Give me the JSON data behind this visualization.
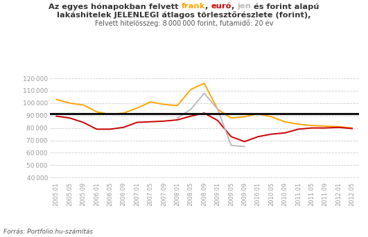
{
  "source": "Forrás: Portfolio.hu-számítás",
  "hline_value": 91500,
  "ylim": [
    37000,
    122000
  ],
  "yticks": [
    40000,
    50000,
    60000,
    70000,
    80000,
    90000,
    100000,
    110000,
    120000
  ],
  "frank_color": "#FFA500",
  "euro_color": "#CC0000",
  "jen_color": "#BBBBBB",
  "hline_color": "#111111",
  "x_dates": [
    "2005.01",
    "2005.05",
    "2005.09",
    "2006.01",
    "2006.05",
    "2006.09",
    "2007.01",
    "2007.05",
    "2007.09",
    "2008.01",
    "2008.05",
    "2008.09",
    "2009.01",
    "2009.05",
    "2009.09",
    "2010.01",
    "2010.05",
    "2010.09",
    "2011.01",
    "2011.05",
    "2011.09",
    "2012.01",
    "2012.05"
  ],
  "frank_values": [
    103000,
    100000,
    98500,
    93000,
    91000,
    92000,
    96000,
    101000,
    99000,
    98000,
    111000,
    116000,
    95000,
    88000,
    89000,
    91500,
    89000,
    85000,
    83000,
    82000,
    81500,
    81000,
    80000
  ],
  "euro_values": [
    89500,
    88000,
    84500,
    79000,
    79000,
    80500,
    84500,
    85000,
    85500,
    86500,
    89500,
    92000,
    86000,
    73000,
    69000,
    73000,
    75000,
    76000,
    79000,
    80000,
    80000,
    80500,
    79500
  ],
  "jen_values": [
    null,
    null,
    null,
    null,
    null,
    null,
    null,
    null,
    null,
    88000,
    95000,
    108000,
    95000,
    66000,
    65000,
    null,
    null,
    null,
    null,
    null,
    null,
    null,
    null
  ],
  "background_color": "#ffffff",
  "grid_color": "#cccccc",
  "axis_label_color": "#999999",
  "title_color": "#333333",
  "subtitle_color": "#555555",
  "frank_label_color": "#FFA500",
  "euro_label_color": "#CC0000",
  "jen_label_color": "#BBBBBB"
}
